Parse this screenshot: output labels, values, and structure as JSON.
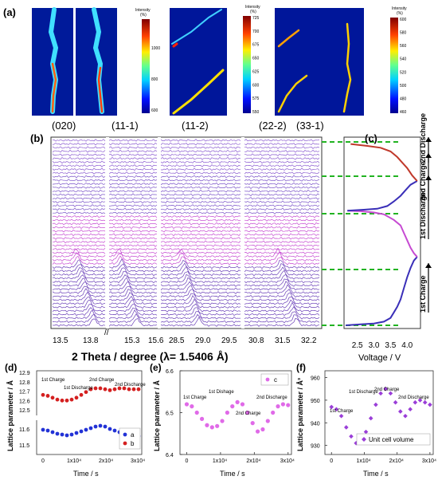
{
  "panels": {
    "a": {
      "label": "(a)"
    },
    "b": {
      "label": "(b)"
    },
    "c": {
      "label": "(c)"
    },
    "d": {
      "label": "(d)"
    },
    "e": {
      "label": "(e)"
    },
    "f": {
      "label": "(f)"
    }
  },
  "heatmaps": {
    "colorbar_title": "Intensity",
    "colorbar_unit": "(%)",
    "colorbar1_ticks": [
      "1000",
      "800",
      "600"
    ],
    "colorbar2_ticks": [
      "725",
      "700",
      "675",
      "650",
      "625",
      "600",
      "575",
      "550"
    ],
    "colorbar3_ticks": [
      "600",
      "580",
      "560",
      "540",
      "520",
      "500",
      "480",
      "460"
    ]
  },
  "peak_labels": [
    "(020)",
    "(11-1)",
    "(11-2)",
    "(22-2)",
    "(33-1)"
  ],
  "xrd": {
    "xlabel": "2 Theta / degree (λ= 1.5406 Å)",
    "ticks": [
      "13.5",
      "13.8",
      "15.3",
      "15.6",
      "28.5",
      "29.0",
      "29.5",
      "30.8",
      "31.5",
      "32.2"
    ],
    "break_mark": "//"
  },
  "colors": {
    "charge": "#3a2fb8",
    "discharge": "#c64ad2",
    "second_discharge": "#c0392b",
    "guide": "#22b322",
    "a_series": "#2232d6",
    "b_series": "#d42020",
    "c_series": "#e06ae8",
    "volume_series": "#9a3ed8"
  },
  "chart_data": [
    {
      "panel": "c",
      "type": "line",
      "xlabel": "Voltage / V",
      "xticks": [
        "2.5",
        "3.0",
        "3.5",
        "4.0"
      ],
      "xlim": [
        2.1,
        4.4
      ],
      "annotations": [
        "1st Charge",
        "1st Discharge",
        "2nd Charge",
        "2nd Discharge"
      ],
      "series": [
        {
          "segment": "charge1",
          "x": [
            2.15,
            2.6,
            3.0,
            3.3,
            3.5,
            3.6,
            3.7,
            3.8,
            3.9,
            4.0,
            4.1,
            4.2,
            4.3
          ],
          "y": [
            0.0,
            0.005,
            0.01,
            0.02,
            0.04,
            0.07,
            0.1,
            0.14,
            0.2,
            0.26,
            0.31,
            0.35,
            0.37
          ]
        },
        {
          "segment": "discharge1",
          "x": [
            4.3,
            4.2,
            4.1,
            4.0,
            3.9,
            3.8,
            3.6,
            3.3,
            3.0,
            2.6,
            2.2
          ],
          "y": [
            0.37,
            0.39,
            0.42,
            0.46,
            0.5,
            0.54,
            0.57,
            0.6,
            0.61,
            0.617,
            0.62
          ]
        },
        {
          "segment": "charge2",
          "x": [
            2.2,
            2.7,
            3.1,
            3.4,
            3.6,
            3.8,
            3.95,
            4.1,
            4.3
          ],
          "y": [
            0.62,
            0.625,
            0.63,
            0.645,
            0.67,
            0.7,
            0.73,
            0.76,
            0.78
          ]
        },
        {
          "segment": "discharge2",
          "x": [
            4.3,
            4.15,
            4.0,
            3.85,
            3.7,
            3.5,
            3.2,
            2.8,
            2.3
          ],
          "y": [
            0.78,
            0.81,
            0.85,
            0.88,
            0.91,
            0.94,
            0.96,
            0.97,
            0.98
          ]
        }
      ]
    },
    {
      "panel": "d",
      "type": "scatter",
      "xlabel": "Time / s",
      "ylabel": "Lattice parameter / Å",
      "xticks": [
        "0",
        "1x10⁴",
        "2x10⁴",
        "3x10⁴"
      ],
      "yticks_upper": [
        "12.9",
        "12.8",
        "12.7",
        "12.6",
        "12.5"
      ],
      "yticks_lower": [
        "11.6",
        "11.5"
      ],
      "xlim": [
        -2000,
        31000
      ],
      "ylim_upper": [
        12.45,
        12.9
      ],
      "ylim_lower": [
        11.45,
        11.65
      ],
      "annotations": [
        "1st Charge",
        "1st Discharge",
        "2nd Charge",
        "2nd Discharge"
      ],
      "series": [
        {
          "name": "a",
          "x": [
            0,
            1500,
            3000,
            4500,
            6000,
            7500,
            9000,
            10500,
            12000,
            13500,
            15000,
            16500,
            18000,
            19500,
            21000,
            22500,
            24000,
            25500,
            27000,
            28500,
            30000
          ],
          "y": [
            11.595,
            11.59,
            11.58,
            11.57,
            11.565,
            11.56,
            11.565,
            11.575,
            11.585,
            11.595,
            11.605,
            11.615,
            11.62,
            11.615,
            11.6,
            11.59,
            11.58,
            11.57,
            11.565,
            11.56,
            11.555
          ]
        },
        {
          "name": "b",
          "x": [
            0,
            1500,
            3000,
            4500,
            6000,
            7500,
            9000,
            10500,
            12000,
            13500,
            15000,
            16500,
            18000,
            19500,
            21000,
            22500,
            24000,
            25500,
            27000,
            28500,
            30000
          ],
          "y": [
            12.66,
            12.65,
            12.63,
            12.61,
            12.6,
            12.6,
            12.61,
            12.63,
            12.66,
            12.69,
            12.72,
            12.73,
            12.73,
            12.72,
            12.71,
            12.72,
            12.73,
            12.73,
            12.72,
            12.72,
            12.72
          ]
        }
      ]
    },
    {
      "panel": "e",
      "type": "scatter",
      "xlabel": "Time / s",
      "ylabel": "Lattice parameter / Å",
      "xticks": [
        "0",
        "1x10⁴",
        "2x10⁴",
        "3x10⁴"
      ],
      "yticks": [
        "6.6",
        "6.5",
        "6.4"
      ],
      "xlim": [
        -2000,
        31000
      ],
      "ylim": [
        6.4,
        6.6
      ],
      "annotations": [
        "1st Charge",
        "1st Dishage",
        "2nd Charge",
        "2nd Discharge"
      ],
      "series": [
        {
          "name": "c",
          "x": [
            0,
            1500,
            3000,
            4500,
            6000,
            7500,
            9000,
            10500,
            12000,
            13500,
            15000,
            16500,
            18000,
            19500,
            21000,
            22500,
            24000,
            25500,
            27000,
            28500,
            30000
          ],
          "y": [
            6.52,
            6.515,
            6.5,
            6.485,
            6.47,
            6.465,
            6.468,
            6.48,
            6.5,
            6.515,
            6.525,
            6.52,
            6.5,
            6.475,
            6.455,
            6.46,
            6.48,
            6.5,
            6.515,
            6.52,
            6.518
          ]
        }
      ]
    },
    {
      "panel": "f",
      "type": "scatter",
      "xlabel": "Time / s",
      "ylabel": "Lattice parameter / Å³",
      "xticks": [
        "0",
        "1x10⁴",
        "2x10⁴",
        "3x10⁴"
      ],
      "yticks": [
        "960",
        "950",
        "940",
        "930"
      ],
      "xlim": [
        -2000,
        31000
      ],
      "ylim": [
        926,
        963
      ],
      "annotations": [
        "1st Charge",
        "1st Discharge",
        "2nd Charge",
        "2nd Discharge"
      ],
      "series": [
        {
          "name": "Unit cell volume",
          "x": [
            0,
            1500,
            3000,
            4500,
            6000,
            7500,
            9000,
            10500,
            12000,
            13500,
            15000,
            16500,
            18000,
            19500,
            21000,
            22500,
            24000,
            25500,
            27000,
            28500,
            30000
          ],
          "y": [
            947,
            946,
            943,
            938,
            934,
            931,
            932,
            936,
            942,
            948,
            953,
            955,
            953,
            949,
            945,
            943,
            946,
            949,
            950,
            949,
            948
          ]
        }
      ]
    }
  ]
}
